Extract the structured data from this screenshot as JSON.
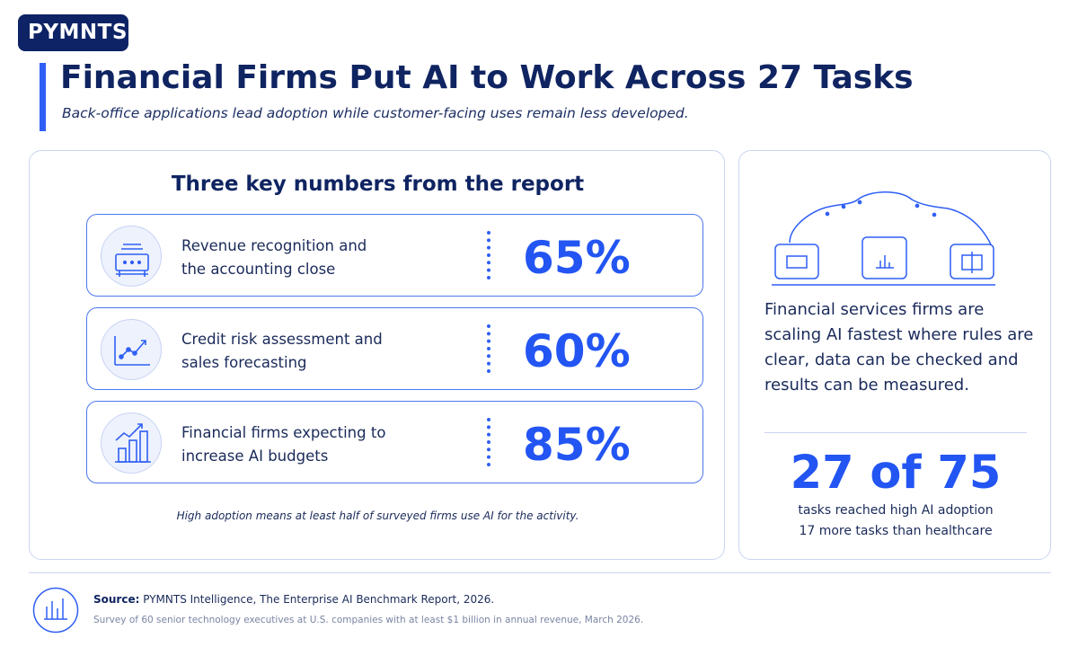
{
  "brand": "PYMNTS",
  "header": {
    "title": "Financial Firms Put AI to Work Across 27 Tasks",
    "subtitle": "Back-office applications lead adoption while customer-facing uses remain less developed."
  },
  "key_numbers": {
    "heading": "Three key numbers from the report",
    "items": [
      {
        "icon": "calculator-icon",
        "label_line1": "Revenue recognition and",
        "label_line2": "the accounting close",
        "value": "65%"
      },
      {
        "icon": "line-chart-icon",
        "label_line1": "Credit risk assessment and",
        "label_line2": "sales forecasting",
        "value": "60%"
      },
      {
        "icon": "bar-growth-icon",
        "label_line1": "Financial firms expecting to",
        "label_line2": "increase AI budgets",
        "value": "85%"
      }
    ],
    "footnote": "High adoption means at least half of surveyed firms use AI for the activity."
  },
  "insight": {
    "illustration": "cloud-devices-icon",
    "text": "Financial services firms are scaling AI fastest where rules are clear, data can be checked and results can be measured.",
    "big_stat": "27 of 75",
    "line1": "tasks reached high AI adoption",
    "line2": "17 more tasks than healthcare"
  },
  "footer": {
    "source_label": "Source:",
    "source_text": "PYMNTS Intelligence, The Enterprise AI Benchmark Report, 2026.",
    "survey": "Survey of 60 senior technology executives at U.S. companies with at least $1 billion in annual revenue, March 2026."
  },
  "colors": {
    "navy": "#0f2461",
    "accent": "#2355f3",
    "border": "#c9d4f1"
  }
}
